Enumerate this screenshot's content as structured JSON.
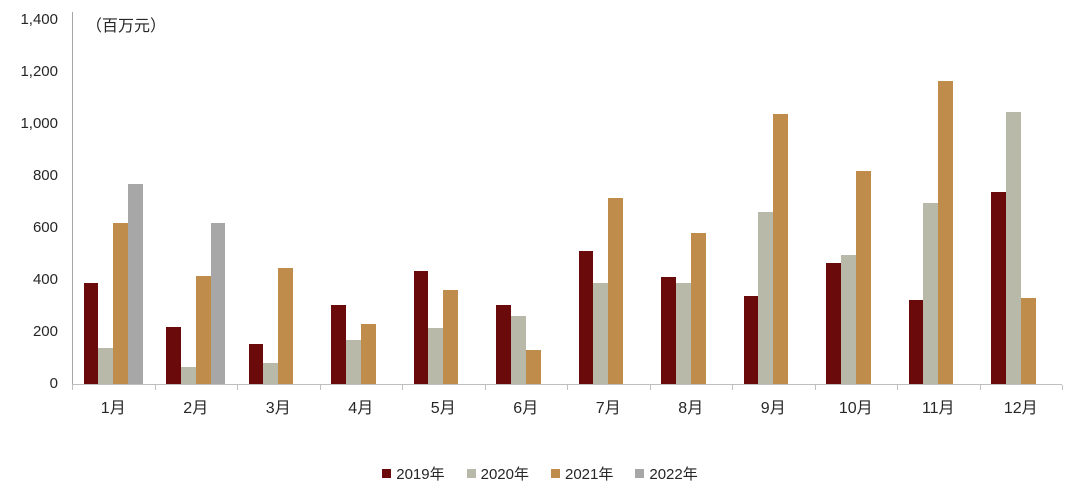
{
  "chart_data": {
    "type": "bar",
    "unit_label": "（百万元）",
    "categories": [
      "1月",
      "2月",
      "3月",
      "4月",
      "5月",
      "6月",
      "7月",
      "8月",
      "9月",
      "10月",
      "11月",
      "12月"
    ],
    "series": [
      {
        "name": "2019年",
        "color": "#6a0a0b",
        "values": [
          390,
          220,
          155,
          305,
          435,
          305,
          510,
          410,
          340,
          465,
          325,
          740
        ]
      },
      {
        "name": "2020年",
        "color": "#b9b9aa",
        "values": [
          140,
          65,
          80,
          170,
          215,
          260,
          390,
          390,
          660,
          495,
          695,
          1045
        ]
      },
      {
        "name": "2021年",
        "color": "#bf8c4b",
        "values": [
          620,
          415,
          445,
          230,
          360,
          130,
          715,
          580,
          1040,
          820,
          1165,
          330
        ]
      },
      {
        "name": "2022年",
        "color": "#a7a7a7",
        "values": [
          770,
          620,
          null,
          null,
          null,
          null,
          null,
          null,
          null,
          null,
          null,
          null
        ]
      }
    ],
    "ylim": [
      0,
      1400
    ],
    "y_tick_step": 200,
    "y_tick_labels": [
      "0",
      "200",
      "400",
      "600",
      "800",
      "1,000",
      "1,200",
      "1,400"
    ],
    "grid": false,
    "legend_position": "bottom"
  }
}
